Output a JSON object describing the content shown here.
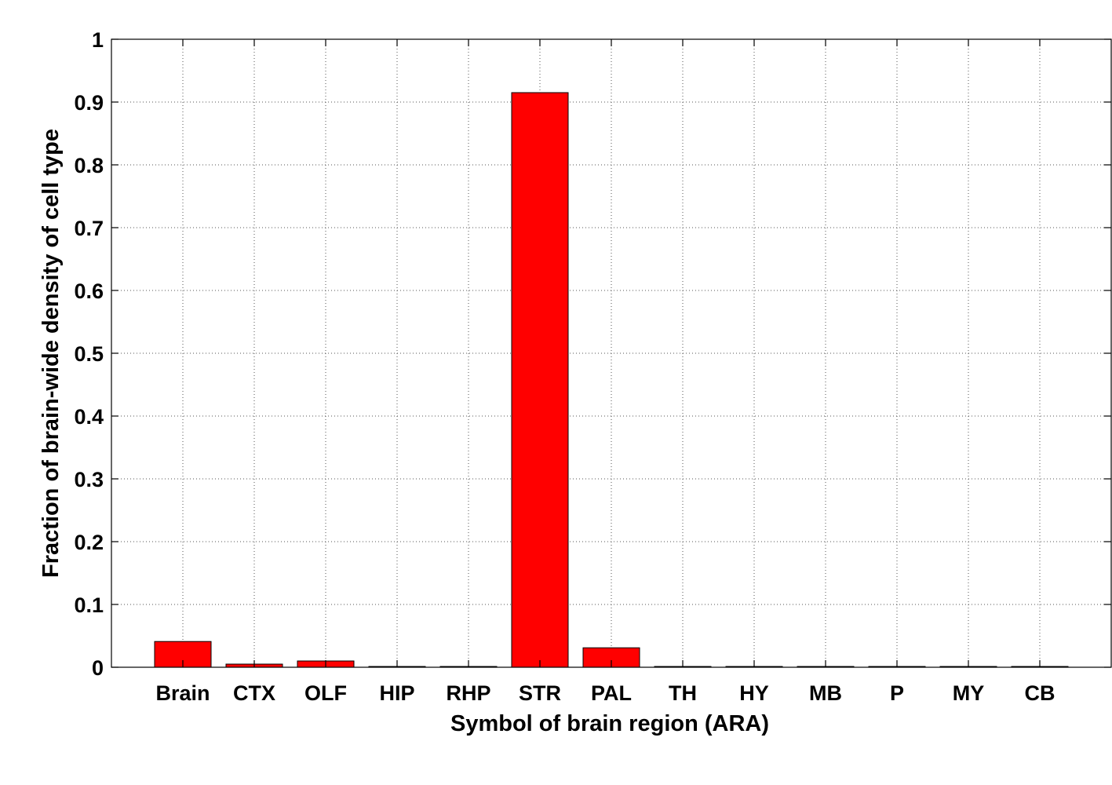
{
  "chart_data": {
    "type": "bar",
    "categories": [
      "Brain",
      "CTX",
      "OLF",
      "HIP",
      "RHP",
      "STR",
      "PAL",
      "TH",
      "HY",
      "MB",
      "P",
      "MY",
      "CB"
    ],
    "values": [
      0.041,
      0.005,
      0.01,
      0.001,
      0.001,
      0.915,
      0.031,
      0.001,
      0.001,
      0.001,
      0.001,
      0.001,
      0.001
    ],
    "title": "",
    "xlabel": "Symbol of brain region (ARA)",
    "ylabel": "Fraction of brain-wide density of cell type",
    "ylim": [
      0,
      1
    ],
    "yticks": [
      "0",
      "0.1",
      "0.2",
      "0.3",
      "0.4",
      "0.5",
      "0.6",
      "0.7",
      "0.8",
      "0.9",
      "1"
    ],
    "grid": true,
    "colors": {
      "bar": "#ff0000"
    }
  }
}
